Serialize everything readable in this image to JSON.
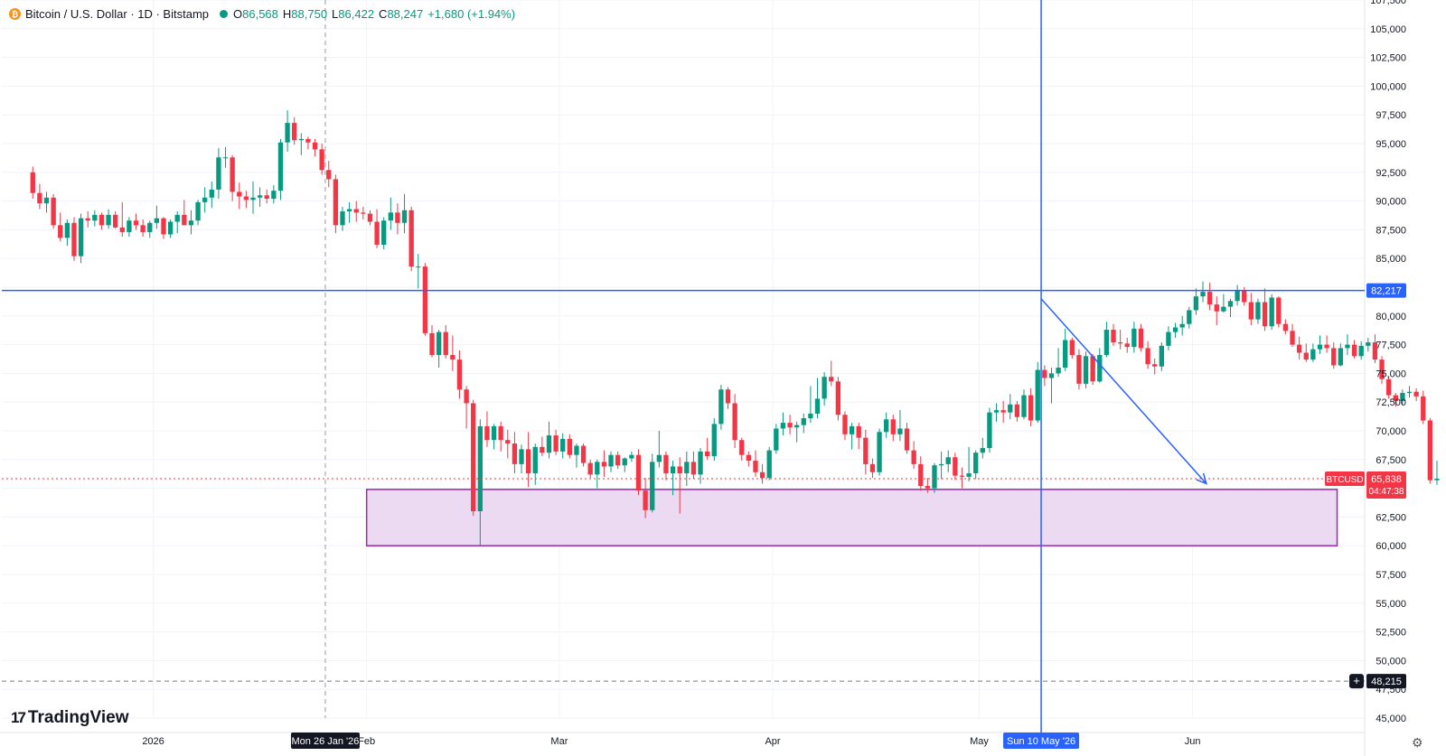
{
  "header": {
    "title": "Bitcoin / U.S. Dollar · 1D · Bitstamp",
    "ohlc": [
      {
        "k": "O",
        "v": "86,568"
      },
      {
        "k": "H",
        "v": "88,750"
      },
      {
        "k": "L",
        "v": "86,422"
      },
      {
        "k": "C",
        "v": "88,247"
      }
    ],
    "change": "+1,680 (+1.94%)",
    "coin_icon": "bitcoin-icon"
  },
  "brand": {
    "name": "TradingView",
    "icon": "tradingview-logo-icon"
  },
  "settings_icon": "gear-icon",
  "colors": {
    "up": "#089981",
    "down": "#f23645",
    "line": "#2962ff",
    "zone": "#9c27b0",
    "zone_fill": "#e9d3f0",
    "price_tag": "#f23645"
  },
  "chart_data": {
    "type": "candlestick",
    "symbol": "BTCUSD",
    "x_range": [
      "2025-12-10",
      "2026-06-26"
    ],
    "ylim": [
      45000,
      107500
    ],
    "y_ticks": [
      "45,000",
      "47,500",
      "50,000",
      "52,500",
      "55,000",
      "57,500",
      "60,000",
      "62,500",
      "65,000",
      "67,500",
      "70,000",
      "72,500",
      "75,000",
      "77,500",
      "80,000",
      "82,500",
      "85,000",
      "87,500",
      "90,000",
      "92,500",
      "95,000",
      "97,500",
      "100,000",
      "102,500",
      "105,000",
      "107,500"
    ],
    "x_ticks": [
      {
        "date": "2026-01-01",
        "label": "2026"
      },
      {
        "date": "2026-02-01",
        "label": "Feb"
      },
      {
        "date": "2026-03-01",
        "label": "Mar"
      },
      {
        "date": "2026-04-01",
        "label": "Apr"
      },
      {
        "date": "2026-05-01",
        "label": "May"
      },
      {
        "date": "2026-06-01",
        "label": "Jun"
      }
    ],
    "candles_start": "2025-12-14",
    "candles_ohlc": [
      [
        92500,
        93000,
        90200,
        90700
      ],
      [
        90700,
        91500,
        89300,
        89800
      ],
      [
        89800,
        90800,
        89000,
        90300
      ],
      [
        90300,
        90600,
        87600,
        87900
      ],
      [
        87900,
        89000,
        86500,
        86800
      ],
      [
        86800,
        88400,
        86100,
        88100
      ],
      [
        88100,
        88600,
        84800,
        85200
      ],
      [
        85200,
        88900,
        84600,
        88500
      ],
      [
        88500,
        89100,
        87700,
        88300
      ],
      [
        88300,
        89200,
        87800,
        88800
      ],
      [
        88800,
        89000,
        87500,
        87900
      ],
      [
        87900,
        89300,
        87600,
        88800
      ],
      [
        88800,
        89100,
        87600,
        87700
      ],
      [
        87700,
        89900,
        86900,
        87300
      ],
      [
        87300,
        88600,
        86900,
        88300
      ],
      [
        88300,
        88900,
        87500,
        87900
      ],
      [
        87900,
        88400,
        86900,
        87300
      ],
      [
        87300,
        88300,
        86800,
        88100
      ],
      [
        88100,
        89600,
        87600,
        88500
      ],
      [
        88500,
        88600,
        86700,
        87100
      ],
      [
        87100,
        88400,
        86800,
        88200
      ],
      [
        88200,
        89100,
        87200,
        88800
      ],
      [
        88800,
        90100,
        88000,
        87900
      ],
      [
        87900,
        89200,
        87100,
        88300
      ],
      [
        88300,
        90100,
        87900,
        89900
      ],
      [
        89900,
        91200,
        89000,
        90300
      ],
      [
        90300,
        91700,
        89400,
        91000
      ],
      [
        91000,
        94600,
        90200,
        93800
      ],
      [
        93800,
        94700,
        92900,
        93800
      ],
      [
        93800,
        94000,
        90000,
        90800
      ],
      [
        90800,
        91600,
        89300,
        90400
      ],
      [
        90400,
        90900,
        89400,
        90100
      ],
      [
        90100,
        91700,
        88900,
        90300
      ],
      [
        90300,
        91200,
        89500,
        90500
      ],
      [
        90500,
        91000,
        89800,
        90200
      ],
      [
        90200,
        91400,
        89800,
        90900
      ],
      [
        90900,
        95400,
        90100,
        95100
      ],
      [
        95100,
        97900,
        94300,
        96800
      ],
      [
        96800,
        97300,
        94900,
        95300
      ],
      [
        95300,
        95900,
        94000,
        95400
      ],
      [
        95400,
        95600,
        94500,
        95100
      ],
      [
        95100,
        95400,
        93900,
        94500
      ],
      [
        94500,
        95000,
        92300,
        92700
      ],
      [
        92700,
        93500,
        91200,
        91900
      ],
      [
        91900,
        92300,
        87200,
        87900
      ],
      [
        87900,
        89500,
        87400,
        89100
      ],
      [
        89100,
        89900,
        88100,
        89300
      ],
      [
        89300,
        90000,
        88200,
        89000
      ],
      [
        89000,
        89500,
        88400,
        88900
      ],
      [
        88900,
        89200,
        87900,
        88200
      ],
      [
        88200,
        89300,
        85900,
        86200
      ],
      [
        86200,
        88600,
        85800,
        88300
      ],
      [
        88300,
        90300,
        87500,
        89000
      ],
      [
        89000,
        89800,
        87100,
        88100
      ],
      [
        88100,
        90600,
        87200,
        89200
      ],
      [
        89200,
        89500,
        83900,
        84300
      ],
      [
        84300,
        85400,
        82400,
        84300
      ],
      [
        84300,
        84600,
        78300,
        78500
      ],
      [
        78500,
        79200,
        76400,
        76600
      ],
      [
        76600,
        78800,
        75500,
        78600
      ],
      [
        78600,
        79200,
        76300,
        76600
      ],
      [
        76600,
        78300,
        75200,
        76200
      ],
      [
        76200,
        77000,
        72800,
        73600
      ],
      [
        73600,
        73900,
        70200,
        72400
      ],
      [
        72400,
        72700,
        62600,
        63000
      ],
      [
        63000,
        71000,
        60000,
        70400
      ],
      [
        70400,
        71700,
        68600,
        69200
      ],
      [
        69200,
        70600,
        68400,
        70400
      ],
      [
        70400,
        70800,
        68200,
        69200
      ],
      [
        69200,
        70100,
        67600,
        68900
      ],
      [
        68900,
        69900,
        66300,
        67100
      ],
      [
        67100,
        68800,
        66300,
        68400
      ],
      [
        68400,
        69900,
        65100,
        66300
      ],
      [
        66300,
        68900,
        65300,
        68600
      ],
      [
        68600,
        69500,
        67800,
        68100
      ],
      [
        68100,
        70800,
        67600,
        69600
      ],
      [
        69600,
        70100,
        67900,
        68200
      ],
      [
        68200,
        69800,
        67600,
        69300
      ],
      [
        69300,
        69700,
        67600,
        67900
      ],
      [
        67900,
        68900,
        66800,
        68700
      ],
      [
        68700,
        68900,
        66900,
        67200
      ],
      [
        67200,
        67500,
        65900,
        66200
      ],
      [
        66200,
        67500,
        65000,
        67300
      ],
      [
        67300,
        68300,
        66000,
        66900
      ],
      [
        66900,
        68200,
        66400,
        67900
      ],
      [
        67900,
        68200,
        66700,
        67000
      ],
      [
        67000,
        67700,
        66400,
        67600
      ],
      [
        67600,
        68200,
        67300,
        67900
      ],
      [
        67900,
        68400,
        64400,
        64800
      ],
      [
        64800,
        65900,
        62400,
        63100
      ],
      [
        63100,
        68000,
        62900,
        67300
      ],
      [
        67300,
        70000,
        66800,
        67900
      ],
      [
        67900,
        68200,
        65700,
        66300
      ],
      [
        66300,
        67400,
        64400,
        66900
      ],
      [
        66900,
        67700,
        62800,
        66300
      ],
      [
        66300,
        68200,
        65200,
        67300
      ],
      [
        67300,
        68200,
        65800,
        66200
      ],
      [
        66200,
        68500,
        65400,
        68200
      ],
      [
        68200,
        69400,
        67500,
        67800
      ],
      [
        67800,
        71100,
        67400,
        70600
      ],
      [
        70600,
        74000,
        70100,
        73600
      ],
      [
        73600,
        73800,
        71900,
        72400
      ],
      [
        72400,
        73200,
        68500,
        69200
      ],
      [
        69200,
        69400,
        67400,
        67900
      ],
      [
        67900,
        68200,
        66900,
        67400
      ],
      [
        67400,
        68300,
        66000,
        66400
      ],
      [
        66400,
        67100,
        65400,
        65900
      ],
      [
        65900,
        68600,
        65700,
        68300
      ],
      [
        68300,
        70600,
        68000,
        70200
      ],
      [
        70200,
        71600,
        69600,
        70700
      ],
      [
        70700,
        71400,
        69700,
        70300
      ],
      [
        70300,
        70800,
        69000,
        70500
      ],
      [
        70500,
        71500,
        69800,
        71100
      ],
      [
        71100,
        73900,
        70700,
        71500
      ],
      [
        71500,
        74600,
        71100,
        72800
      ],
      [
        72800,
        75100,
        72200,
        74700
      ],
      [
        74700,
        76100,
        73900,
        74300
      ],
      [
        74300,
        74700,
        70900,
        71400
      ],
      [
        71400,
        71700,
        69200,
        69700
      ],
      [
        69700,
        70700,
        68400,
        70400
      ],
      [
        70400,
        70700,
        68400,
        69400
      ],
      [
        69400,
        70100,
        66200,
        67100
      ],
      [
        67100,
        67600,
        65900,
        66400
      ],
      [
        66400,
        70200,
        66100,
        69900
      ],
      [
        69900,
        71600,
        69400,
        71000
      ],
      [
        71000,
        71400,
        69100,
        69700
      ],
      [
        69700,
        71800,
        69100,
        70200
      ],
      [
        70200,
        70700,
        68000,
        68300
      ],
      [
        68300,
        69100,
        66700,
        67100
      ],
      [
        67100,
        67800,
        64800,
        65200
      ],
      [
        65200,
        65900,
        64600,
        65000
      ],
      [
        65000,
        67200,
        64600,
        67000
      ],
      [
        67000,
        68200,
        65800,
        67100
      ],
      [
        67100,
        68300,
        66400,
        67700
      ],
      [
        67700,
        68100,
        65700,
        66100
      ],
      [
        66100,
        66800,
        65000,
        66000
      ],
      [
        66000,
        68600,
        65600,
        66300
      ],
      [
        66300,
        68300,
        65800,
        68100
      ],
      [
        68100,
        69400,
        67600,
        68500
      ],
      [
        68500,
        72000,
        68100,
        71600
      ],
      [
        71600,
        72400,
        70800,
        71800
      ],
      [
        71800,
        72600,
        70700,
        71600
      ],
      [
        71600,
        73200,
        71000,
        72300
      ],
      [
        72300,
        72600,
        70800,
        71200
      ],
      [
        71200,
        73600,
        71000,
        73100
      ],
      [
        73100,
        73700,
        70400,
        70900
      ],
      [
        70900,
        76000,
        70700,
        75300
      ],
      [
        75300,
        75700,
        73900,
        74600
      ],
      [
        74600,
        75500,
        72400,
        75000
      ],
      [
        75000,
        77200,
        74700,
        75500
      ],
      [
        75500,
        78900,
        75200,
        77900
      ],
      [
        77900,
        78100,
        76300,
        76600
      ],
      [
        76600,
        77100,
        73600,
        74100
      ],
      [
        74100,
        76900,
        73700,
        76500
      ],
      [
        76500,
        76700,
        74000,
        74300
      ],
      [
        74300,
        77200,
        74200,
        76600
      ],
      [
        76600,
        79500,
        76400,
        78800
      ],
      [
        78800,
        79300,
        77400,
        77700
      ],
      [
        77700,
        78800,
        77100,
        77600
      ],
      [
        77600,
        78100,
        76800,
        77300
      ],
      [
        77300,
        79500,
        76800,
        78900
      ],
      [
        78900,
        79300,
        76900,
        77200
      ],
      [
        77200,
        77800,
        75400,
        75800
      ],
      [
        75800,
        76300,
        74900,
        75600
      ],
      [
        75600,
        77700,
        75200,
        77400
      ],
      [
        77400,
        79100,
        77000,
        78600
      ],
      [
        78600,
        79400,
        78100,
        79000
      ],
      [
        79000,
        80000,
        78300,
        79300
      ],
      [
        79300,
        80800,
        78900,
        80500
      ],
      [
        80500,
        82400,
        80100,
        81700
      ],
      [
        81700,
        83000,
        81200,
        82100
      ],
      [
        82100,
        82900,
        80500,
        81000
      ],
      [
        81000,
        81700,
        79200,
        80400
      ],
      [
        80400,
        81900,
        80300,
        80800
      ],
      [
        80800,
        81500,
        79900,
        81300
      ],
      [
        81300,
        82700,
        80900,
        82200
      ],
      [
        82200,
        82500,
        80900,
        81200
      ],
      [
        81200,
        82000,
        79200,
        79700
      ],
      [
        79700,
        81500,
        79300,
        81200
      ],
      [
        81200,
        82400,
        78700,
        79100
      ],
      [
        79100,
        81900,
        78800,
        81600
      ],
      [
        81600,
        81700,
        79000,
        79300
      ],
      [
        79300,
        79700,
        78400,
        78700
      ],
      [
        78700,
        79300,
        77300,
        77500
      ],
      [
        77500,
        78200,
        76200,
        76800
      ],
      [
        76800,
        77600,
        76000,
        76200
      ],
      [
        76200,
        77600,
        76000,
        77100
      ],
      [
        77100,
        78300,
        76700,
        77500
      ],
      [
        77500,
        78300,
        76800,
        77200
      ],
      [
        77200,
        77700,
        75400,
        75700
      ],
      [
        75700,
        77600,
        75600,
        77200
      ],
      [
        77200,
        78400,
        76600,
        77500
      ],
      [
        77500,
        77900,
        76300,
        76500
      ],
      [
        76500,
        77800,
        76200,
        77400
      ],
      [
        77400,
        78100,
        76900,
        77700
      ],
      [
        77700,
        78400,
        75900,
        76200
      ],
      [
        76200,
        76500,
        74100,
        74500
      ],
      [
        74500,
        74700,
        72800,
        73100
      ],
      [
        73100,
        73300,
        72100,
        72600
      ],
      [
        72600,
        73600,
        72300,
        73300
      ],
      [
        73300,
        73900,
        72900,
        73400
      ],
      [
        73400,
        73700,
        72600,
        73000
      ],
      [
        73000,
        73500,
        70600,
        70900
      ],
      [
        70900,
        71100,
        65400,
        65700
      ],
      [
        65700,
        67400,
        65300,
        65838
      ]
    ],
    "price_lines": [
      {
        "value": 82217,
        "label": "82,217",
        "style": "solid"
      },
      {
        "value": 65838,
        "label": "65,838",
        "style": "dotted",
        "symbol_tag": "BTCUSD",
        "countdown": "04:47:38"
      },
      {
        "value": 48215,
        "label": "48,215",
        "style": "dashed"
      }
    ],
    "zone": {
      "from": "2026-02-01",
      "to": "2026-06-22",
      "low": 60000,
      "high": 64900
    },
    "trend_arrow": {
      "from": {
        "date": "2026-05-10",
        "value": 81500
      },
      "to": {
        "date": "2026-06-03",
        "value": 65400
      }
    },
    "crosshair_x": {
      "date": "2026-05-10",
      "label": "Sun 10 May '26"
    },
    "crosshair_y_value": 82217,
    "vertical_marker": {
      "date": "2026-01-26",
      "label": "Mon 26 Jan '26"
    }
  }
}
